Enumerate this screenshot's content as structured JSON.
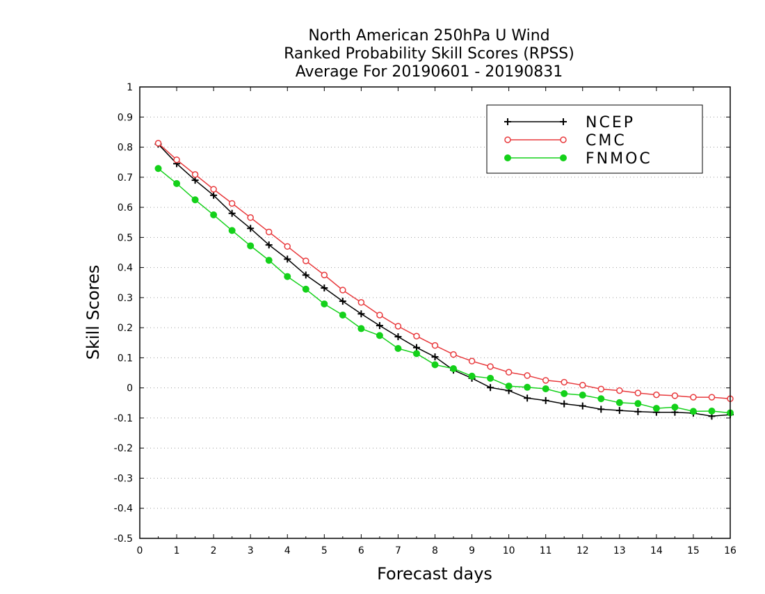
{
  "chart_data": {
    "type": "line",
    "title_lines": [
      "North American 250hPa U Wind",
      "Ranked Probability Skill Scores (RPSS)",
      "Average For 20190601 - 20190831"
    ],
    "xlabel": "Forecast days",
    "ylabel": "Skill Scores",
    "xlim": [
      0,
      16
    ],
    "ylim": [
      -0.5,
      1
    ],
    "x_ticks": [
      0,
      1,
      2,
      3,
      4,
      5,
      6,
      7,
      8,
      9,
      10,
      11,
      12,
      13,
      14,
      15,
      16
    ],
    "x_tick_labels": [
      "0",
      "1",
      "2",
      "3",
      "4",
      "5",
      "6",
      "7",
      "8",
      "9",
      "10",
      "11",
      "12",
      "13",
      "14",
      "15",
      "16"
    ],
    "y_ticks": [
      -0.5,
      -0.4,
      -0.3,
      -0.2,
      -0.1,
      0,
      0.1,
      0.2,
      0.3,
      0.4,
      0.5,
      0.6,
      0.7,
      0.8,
      0.9,
      1
    ],
    "y_tick_labels": [
      "-0.5",
      "-0.4",
      "-0.3",
      "-0.2",
      "-0.1",
      "0",
      "0.1",
      "0.2",
      "0.3",
      "0.4",
      "0.5",
      "0.6",
      "0.7",
      "0.8",
      "0.9",
      "1"
    ],
    "grid": "horizontal dotted",
    "legend_position": "top-right",
    "x": [
      0.5,
      1,
      1.5,
      2,
      2.5,
      3,
      3.5,
      4,
      4.5,
      5,
      5.5,
      6,
      6.5,
      7,
      7.5,
      8,
      8.5,
      9,
      9.5,
      10,
      10.5,
      11,
      11.5,
      12,
      12.5,
      13,
      13.5,
      14,
      14.5,
      15,
      15.5,
      16
    ],
    "series": [
      {
        "name": "NCEP",
        "color": "#000000",
        "marker": "plus",
        "values": [
          0.81,
          0.745,
          0.69,
          0.64,
          0.58,
          0.53,
          0.475,
          0.428,
          0.375,
          0.332,
          0.288,
          0.246,
          0.207,
          0.17,
          0.134,
          0.103,
          0.059,
          0.032,
          0.001,
          -0.009,
          -0.034,
          -0.042,
          -0.053,
          -0.06,
          -0.071,
          -0.075,
          -0.079,
          -0.081,
          -0.081,
          -0.084,
          -0.094,
          -0.089
        ]
      },
      {
        "name": "CMC",
        "color": "#e8393c",
        "marker": "open-circle",
        "values": [
          0.813,
          0.758,
          0.709,
          0.66,
          0.613,
          0.566,
          0.518,
          0.47,
          0.422,
          0.375,
          0.325,
          0.284,
          0.242,
          0.205,
          0.172,
          0.141,
          0.111,
          0.089,
          0.071,
          0.052,
          0.041,
          0.025,
          0.019,
          0.009,
          -0.004,
          -0.009,
          -0.017,
          -0.023,
          -0.026,
          -0.031,
          -0.031,
          -0.036
        ]
      },
      {
        "name": "FNMOC",
        "color": "#14d11a",
        "marker": "filled-circle",
        "values": [
          0.729,
          0.679,
          0.625,
          0.575,
          0.523,
          0.472,
          0.424,
          0.37,
          0.328,
          0.279,
          0.242,
          0.197,
          0.174,
          0.131,
          0.114,
          0.077,
          0.064,
          0.039,
          0.032,
          0.006,
          0.002,
          -0.003,
          -0.019,
          -0.024,
          -0.036,
          -0.049,
          -0.052,
          -0.068,
          -0.064,
          -0.078,
          -0.077,
          -0.083
        ]
      }
    ]
  }
}
